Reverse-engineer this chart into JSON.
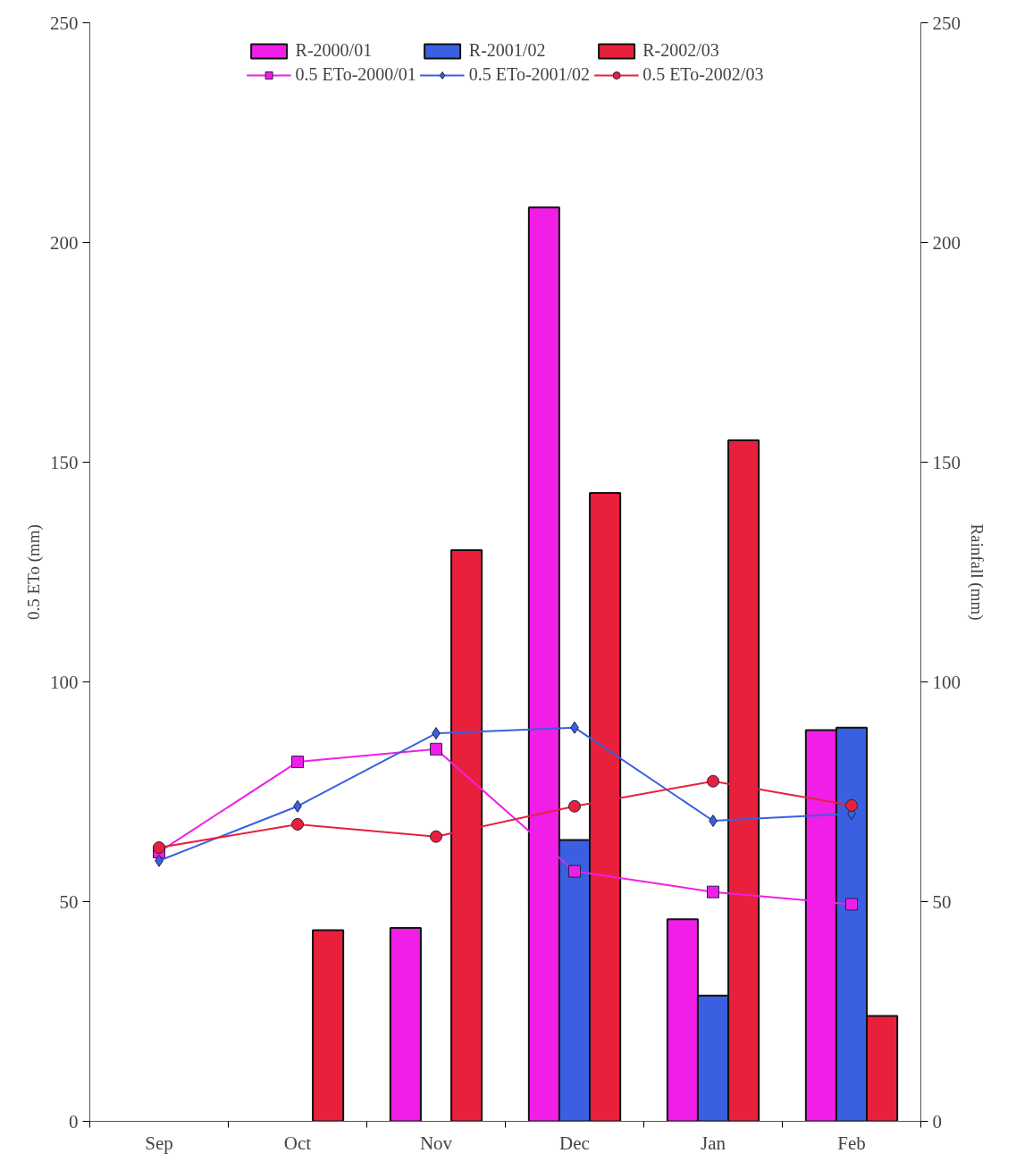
{
  "chart_data": {
    "type": "bar",
    "categories": [
      "Sep",
      "Oct",
      "Nov",
      "Dec",
      "Jan",
      "Feb"
    ],
    "ylabel": "0.5 ETo (mm)",
    "y2label": "Rainfall (mm)",
    "ylim": [
      0,
      250
    ],
    "yticks": [
      0,
      50,
      100,
      150,
      200,
      250
    ],
    "y2lim": [
      0,
      250
    ],
    "y2ticks": [
      0,
      50,
      100,
      150,
      200,
      250
    ],
    "grid": false,
    "legend": "top",
    "series": [
      {
        "name": "R-2000/01",
        "axis": "y2",
        "color": "#f01ee6",
        "values": [
          null,
          null,
          44,
          208,
          46,
          89
        ]
      },
      {
        "name": "R-2001/02",
        "axis": "y2",
        "color": "#3a5fe0",
        "values": [
          null,
          null,
          null,
          64,
          28.6,
          89.6
        ]
      },
      {
        "name": "R-2002/03",
        "axis": "y2",
        "color": "#e8203c",
        "values": [
          null,
          43.5,
          130,
          143,
          155,
          24
        ]
      },
      {
        "name": "0.5 ETo-2000/01",
        "type": "line",
        "marker": "square",
        "color": "#f01ee6",
        "values": [
          61.3,
          81.8,
          84.7,
          56.9,
          52.2,
          49.4
        ]
      },
      {
        "name": "0.5 ETo-2001/02",
        "type": "line",
        "marker": "diamond",
        "color": "#3a5fe0",
        "values": [
          59.3,
          71.7,
          88.3,
          89.6,
          68.4,
          70
        ]
      },
      {
        "name": "0.5 ETo-2002/03",
        "type": "line",
        "marker": "circle",
        "color": "#e8203c",
        "values": [
          62.3,
          67.6,
          64.8,
          71.7,
          77.4,
          71.9
        ]
      }
    ]
  }
}
